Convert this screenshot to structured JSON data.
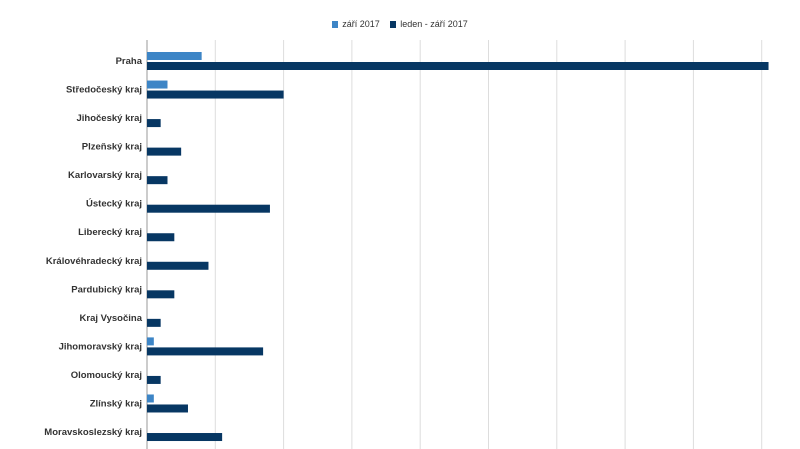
{
  "chart_data": {
    "type": "bar",
    "orientation": "horizontal",
    "title": "",
    "xlabel": "",
    "ylabel": "",
    "grid": true,
    "legend_position": "top",
    "xlim": [
      0,
      9
    ],
    "categories": [
      "Praha",
      "Středočeský kraj",
      "Jihočeský kraj",
      "Plzeňský kraj",
      "Karlovarský kraj",
      "Ústecký kraj",
      "Liberecký kraj",
      "Královéhradecký kraj",
      "Pardubický kraj",
      "Kraj Vysočina",
      "Jihomoravský kraj",
      "Olomoucký kraj",
      "Zlínský kraj",
      "Moravskoslezský kraj"
    ],
    "series": [
      {
        "name": "září 2017",
        "color": "#3d85c6",
        "values": [
          0.8,
          0.3,
          0,
          0,
          0,
          0,
          0,
          0,
          0,
          0,
          0.1,
          0,
          0.1,
          0
        ]
      },
      {
        "name": "leden - září 2017",
        "color": "#073763",
        "values": [
          9.1,
          2.0,
          0.2,
          0.5,
          0.3,
          1.8,
          0.4,
          0.9,
          0.4,
          0.2,
          1.7,
          0.2,
          0.6,
          1.1
        ]
      }
    ]
  }
}
